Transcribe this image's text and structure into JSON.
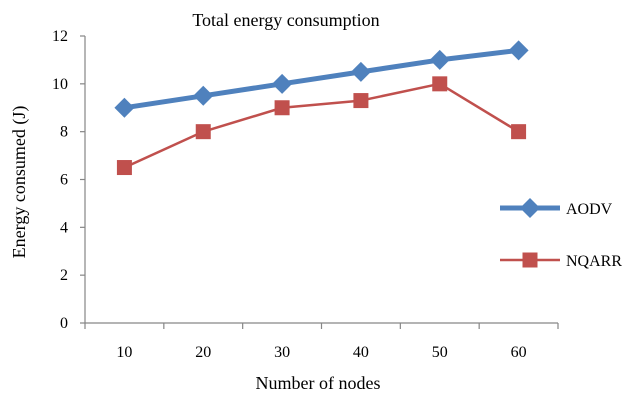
{
  "chart_data": {
    "type": "line",
    "title": "Total energy consumption",
    "xlabel": "Number of nodes",
    "ylabel": "Energy consumed (J)",
    "categories": [
      "10",
      "20",
      "30",
      "40",
      "50",
      "60"
    ],
    "ylim": [
      0,
      12
    ],
    "yticks": [
      "0",
      "2",
      "4",
      "6",
      "8",
      "10",
      "12"
    ],
    "grid": false,
    "legend_position": "right",
    "series": [
      {
        "name": "AODV",
        "values": [
          9.0,
          9.5,
          10.0,
          10.5,
          11.0,
          11.4
        ],
        "color": "#4F81BD",
        "marker": "diamond"
      },
      {
        "name": "NQARR",
        "values": [
          6.5,
          8.0,
          9.0,
          9.3,
          10.0,
          8.0
        ],
        "color": "#C0504D",
        "marker": "square"
      }
    ]
  }
}
